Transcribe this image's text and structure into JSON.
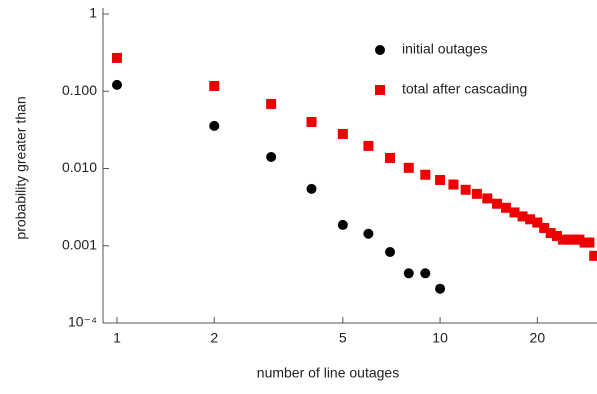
{
  "chart_data": {
    "type": "scatter",
    "x_label": "number of line outages",
    "y_label": "probability greater than",
    "xlog": true,
    "ylog": true,
    "xlim": [
      0.905,
      30.6
    ],
    "ylim": [
      0.0001,
      1
    ],
    "xticks": [
      1,
      2,
      5,
      10,
      20
    ],
    "yticks": [
      {
        "value": 0.0001,
        "label": "10⁻⁴"
      },
      {
        "value": 0.001,
        "label": "0.001"
      },
      {
        "value": 0.01,
        "label": "0.010"
      },
      {
        "value": 0.1,
        "label": "0.100"
      },
      1
    ],
    "legend": "top-right",
    "series": [
      {
        "name": "initial outages",
        "color": "#000000",
        "marker": "circle",
        "x": [
          1,
          2,
          3,
          4,
          5,
          6,
          7,
          8,
          9,
          10
        ],
        "values": [
          0.121,
          0.0356,
          0.0141,
          0.00545,
          0.00186,
          0.00143,
          0.00083,
          0.00044,
          0.00044,
          0.000278
        ]
      },
      {
        "name": "total after cascading",
        "color": "#ee0000",
        "marker": "square",
        "x": [
          1,
          2,
          3,
          4,
          5,
          6,
          7,
          8,
          9,
          10,
          11,
          12,
          13,
          14,
          15,
          16,
          17,
          18,
          19,
          20,
          21,
          22,
          23,
          24,
          25,
          26,
          27,
          28,
          29,
          30
        ],
        "values": [
          0.27,
          0.117,
          0.0685,
          0.04,
          0.028,
          0.0196,
          0.0137,
          0.0102,
          0.0083,
          0.0071,
          0.0062,
          0.0053,
          0.0047,
          0.0041,
          0.0035,
          0.0031,
          0.0027,
          0.0024,
          0.0022,
          0.002,
          0.0017,
          0.00146,
          0.00134,
          0.0012,
          0.0012,
          0.0012,
          0.0012,
          0.0011,
          0.0011,
          0.00074
        ]
      }
    ]
  }
}
